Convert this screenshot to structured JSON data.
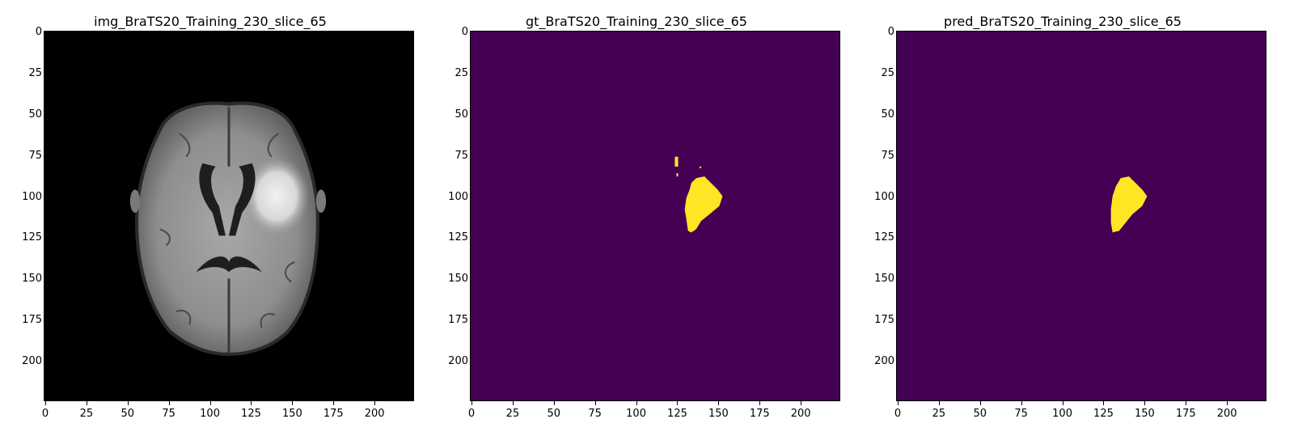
{
  "figure": {
    "panels": [
      {
        "id": "img",
        "title": "img_BraTS20_Training_230_slice_65",
        "kind": "mri-flair-axial-slice",
        "background": "#000000"
      },
      {
        "id": "gt",
        "title": "gt_BraTS20_Training_230_slice_65",
        "kind": "segmentation-mask",
        "background": "#440154",
        "mask_color": "#fde725"
      },
      {
        "id": "pred",
        "title": "pred_BraTS20_Training_230_slice_65",
        "kind": "segmentation-mask",
        "background": "#440154",
        "mask_color": "#fde725"
      }
    ],
    "x_ticks": [
      "0",
      "25",
      "50",
      "75",
      "100",
      "125",
      "150",
      "175",
      "200"
    ],
    "y_ticks": [
      "0",
      "25",
      "50",
      "75",
      "100",
      "125",
      "150",
      "175",
      "200"
    ],
    "axis_range": [
      0,
      224
    ]
  }
}
